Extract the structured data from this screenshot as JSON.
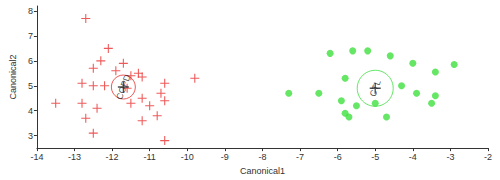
{
  "chart_data": {
    "type": "scatter",
    "x_label": "Canonical1",
    "y_label": "Canonical2",
    "xlim": [
      -14,
      -2
    ],
    "xticks": [
      -14,
      -13,
      -12,
      -11,
      -10,
      -9,
      -8,
      -7,
      -6,
      -5,
      -4,
      -3,
      -2
    ],
    "ylim": [
      2.5,
      8.2
    ],
    "yticks": [
      3,
      4,
      5,
      6,
      7,
      8
    ],
    "grid": false,
    "series": [
      {
        "name": "COPD",
        "color": "#e8312f",
        "marker": "plus",
        "x": [
          -12.7,
          -12.1,
          -12.3,
          -11.7,
          -11.9,
          -12.5,
          -11.3,
          -11.5,
          -11.2,
          -12.8,
          -12.5,
          -12.2,
          -10.6,
          -9.8,
          -11.6,
          -13.5,
          -12.8,
          -12.4,
          -11.5,
          -11.2,
          -10.7,
          -10.6,
          -11.0,
          -12.7,
          -11.2,
          -10.8,
          -12.5,
          -10.6
        ],
        "values": [
          7.7,
          6.5,
          6.0,
          5.9,
          5.6,
          5.7,
          5.5,
          5.4,
          5.35,
          5.1,
          5.0,
          5.0,
          5.1,
          5.3,
          4.9,
          4.3,
          4.3,
          4.1,
          4.3,
          4.5,
          4.7,
          4.4,
          4.2,
          3.7,
          3.6,
          3.8,
          3.1,
          2.8
        ],
        "centroid": [
          -11.7,
          4.95
        ]
      },
      {
        "name": "CTL",
        "color": "#3ee03e",
        "marker": "circle",
        "x": [
          -5.6,
          -5.2,
          -6.2,
          -4.6,
          -4.0,
          -2.9,
          -3.4,
          -5.8,
          -4.3,
          -3.9,
          -7.3,
          -6.5,
          -3.4,
          -5.9,
          -5.0,
          -3.5,
          -5.5,
          -5.8,
          -5.7,
          -4.7
        ],
        "values": [
          6.4,
          6.4,
          6.3,
          6.2,
          5.9,
          5.85,
          5.55,
          5.3,
          5.0,
          4.7,
          4.7,
          4.7,
          4.6,
          4.4,
          4.3,
          4.3,
          4.2,
          3.9,
          3.75,
          3.75
        ],
        "centroid": [
          -5.0,
          4.9
        ]
      }
    ]
  }
}
